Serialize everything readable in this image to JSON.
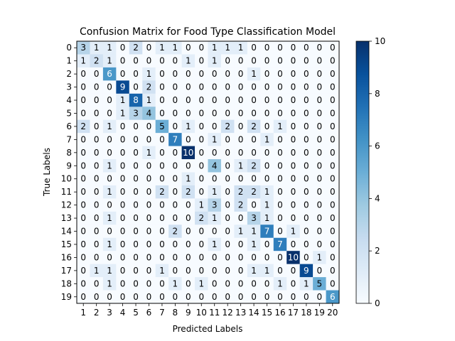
{
  "chart_data": {
    "type": "heatmap",
    "title": "Confusion Matrix for Food Type Classification Model",
    "xlabel": "Predicted Labels",
    "ylabel": "True Labels",
    "x_ticks": [
      "1",
      "2",
      "3",
      "4",
      "5",
      "6",
      "7",
      "8",
      "9",
      "10",
      "11",
      "12",
      "13",
      "14",
      "15",
      "16",
      "17",
      "18",
      "19",
      "20"
    ],
    "y_ticks": [
      "0",
      "1",
      "2",
      "3",
      "4",
      "5",
      "6",
      "7",
      "8",
      "9",
      "10",
      "11",
      "12",
      "13",
      "14",
      "15",
      "16",
      "17",
      "18",
      "19"
    ],
    "matrix": [
      [
        3,
        1,
        1,
        0,
        2,
        0,
        1,
        1,
        0,
        0,
        1,
        1,
        1,
        0,
        0,
        0,
        0,
        0,
        0,
        0
      ],
      [
        1,
        2,
        1,
        0,
        0,
        0,
        0,
        0,
        1,
        0,
        1,
        0,
        0,
        0,
        0,
        0,
        0,
        0,
        0,
        0
      ],
      [
        0,
        0,
        6,
        0,
        0,
        1,
        0,
        0,
        0,
        0,
        0,
        0,
        0,
        1,
        0,
        0,
        0,
        0,
        0,
        0
      ],
      [
        0,
        0,
        0,
        9,
        0,
        2,
        0,
        0,
        0,
        0,
        0,
        0,
        0,
        0,
        0,
        0,
        0,
        0,
        0,
        0
      ],
      [
        0,
        0,
        0,
        1,
        8,
        1,
        0,
        0,
        0,
        0,
        0,
        0,
        0,
        0,
        0,
        0,
        0,
        0,
        0,
        0
      ],
      [
        0,
        0,
        0,
        1,
        3,
        4,
        0,
        0,
        0,
        0,
        0,
        0,
        0,
        0,
        0,
        0,
        0,
        0,
        0,
        0
      ],
      [
        2,
        0,
        1,
        0,
        0,
        0,
        5,
        0,
        1,
        0,
        0,
        2,
        0,
        2,
        0,
        1,
        0,
        0,
        0,
        0
      ],
      [
        0,
        0,
        0,
        0,
        0,
        0,
        0,
        7,
        0,
        0,
        1,
        0,
        0,
        0,
        1,
        0,
        0,
        0,
        0,
        0
      ],
      [
        0,
        0,
        0,
        0,
        0,
        1,
        0,
        0,
        10,
        0,
        0,
        0,
        0,
        0,
        0,
        0,
        0,
        0,
        0,
        0
      ],
      [
        0,
        0,
        1,
        0,
        0,
        0,
        0,
        0,
        0,
        0,
        4,
        0,
        1,
        2,
        0,
        0,
        0,
        0,
        0,
        0
      ],
      [
        0,
        0,
        0,
        0,
        0,
        0,
        0,
        0,
        1,
        0,
        0,
        0,
        0,
        0,
        0,
        0,
        0,
        0,
        0,
        0
      ],
      [
        0,
        0,
        1,
        0,
        0,
        0,
        2,
        0,
        2,
        0,
        1,
        0,
        2,
        2,
        1,
        0,
        0,
        0,
        0,
        0
      ],
      [
        0,
        0,
        0,
        0,
        0,
        0,
        0,
        0,
        0,
        1,
        3,
        0,
        2,
        0,
        1,
        0,
        0,
        0,
        0,
        0
      ],
      [
        0,
        0,
        1,
        0,
        0,
        0,
        0,
        0,
        0,
        2,
        1,
        0,
        0,
        3,
        1,
        0,
        0,
        0,
        0,
        0
      ],
      [
        0,
        0,
        0,
        0,
        0,
        0,
        0,
        2,
        0,
        0,
        0,
        0,
        1,
        1,
        7,
        0,
        1,
        0,
        0,
        0
      ],
      [
        0,
        0,
        1,
        0,
        0,
        0,
        0,
        0,
        0,
        0,
        1,
        0,
        0,
        1,
        0,
        7,
        0,
        0,
        0,
        0
      ],
      [
        0,
        0,
        0,
        0,
        0,
        0,
        0,
        0,
        0,
        0,
        0,
        0,
        0,
        0,
        0,
        0,
        10,
        0,
        1,
        0
      ],
      [
        0,
        1,
        1,
        0,
        0,
        0,
        1,
        0,
        0,
        0,
        0,
        0,
        0,
        1,
        1,
        0,
        0,
        9,
        0,
        0
      ],
      [
        0,
        0,
        1,
        0,
        0,
        0,
        0,
        1,
        0,
        1,
        0,
        0,
        0,
        0,
        0,
        1,
        0,
        1,
        5,
        0
      ],
      [
        0,
        0,
        0,
        0,
        0,
        0,
        0,
        0,
        0,
        0,
        0,
        0,
        0,
        0,
        0,
        0,
        0,
        0,
        0,
        6
      ]
    ],
    "colorbar": {
      "min": 0,
      "max": 10,
      "ticks": [
        "0",
        "2",
        "4",
        "6",
        "8",
        "10"
      ],
      "colormap": "Blues"
    }
  }
}
